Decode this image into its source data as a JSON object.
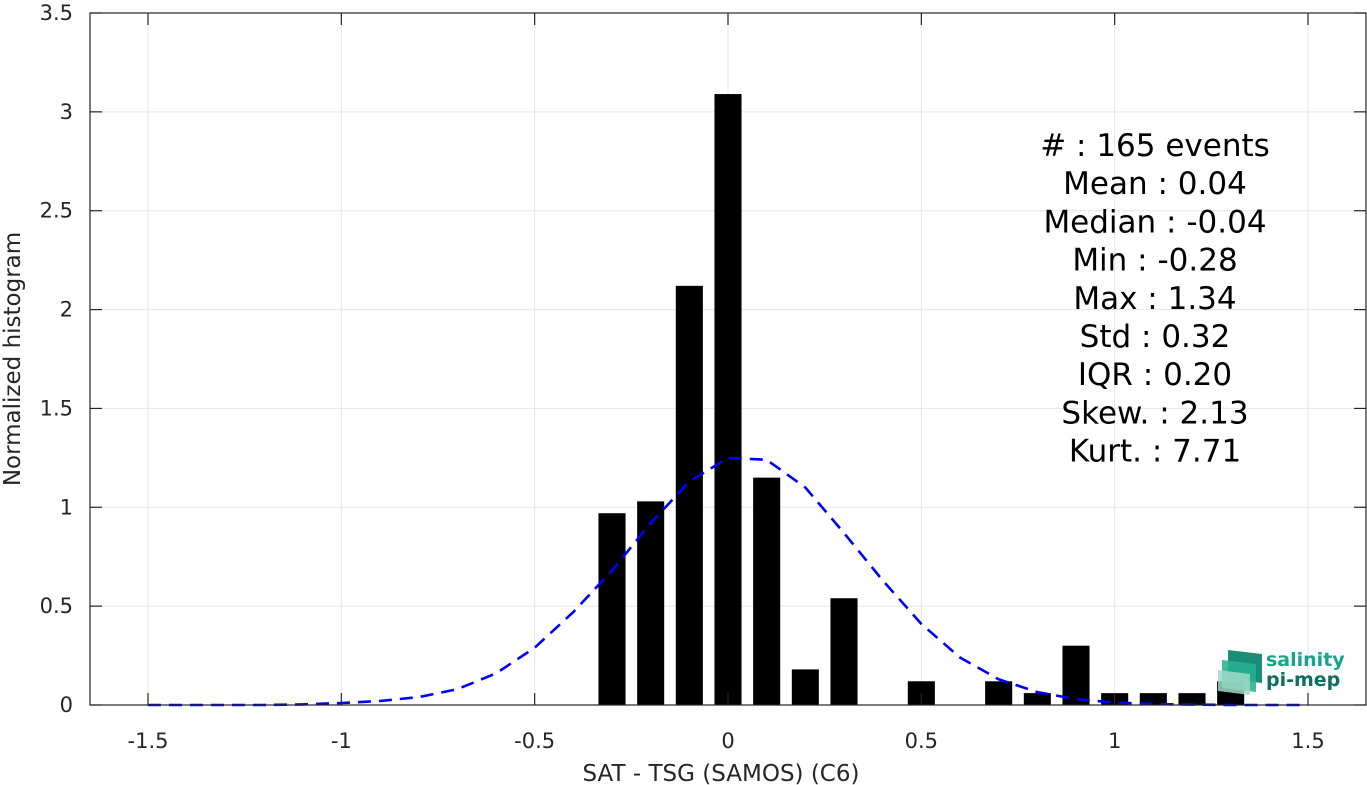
{
  "chart_data": {
    "type": "bar",
    "title": "",
    "xlabel": "SAT - TSG (SAMOS) (C6)",
    "ylabel": "Normalized histogram",
    "xlim": [
      -1.65,
      1.65
    ],
    "ylim": [
      0,
      3.5
    ],
    "grid": true,
    "xticks": [
      -1.5,
      -1,
      -0.5,
      0,
      0.5,
      1,
      1.5
    ],
    "xtick_labels": [
      "-1.5",
      "-1",
      "-0.5",
      "0",
      "0.5",
      "1",
      "1.5"
    ],
    "yticks": [
      0,
      0.5,
      1,
      1.5,
      2,
      2.5,
      3,
      3.5
    ],
    "ytick_labels": [
      "0",
      "0.5",
      "1",
      "1.5",
      "2",
      "2.5",
      "3",
      "3.5"
    ],
    "bar_width": 0.07,
    "bars": {
      "x": [
        -0.3,
        -0.2,
        -0.1,
        0.0,
        0.1,
        0.2,
        0.3,
        0.5,
        0.7,
        0.8,
        0.9,
        1.0,
        1.1,
        1.2,
        1.3
      ],
      "values": [
        0.97,
        1.03,
        2.12,
        3.09,
        1.15,
        0.18,
        0.54,
        0.12,
        0.12,
        0.06,
        0.3,
        0.06,
        0.06,
        0.06,
        0.12
      ],
      "color": "#000000"
    },
    "fit_curve": {
      "style": "dashed",
      "color": "#0000ff",
      "x": [
        -1.5,
        -1.4,
        -1.3,
        -1.2,
        -1.1,
        -1.0,
        -0.9,
        -0.8,
        -0.7,
        -0.6,
        -0.5,
        -0.4,
        -0.3,
        -0.2,
        -0.1,
        0.0,
        0.1,
        0.2,
        0.3,
        0.4,
        0.5,
        0.6,
        0.7,
        0.8,
        0.9,
        1.0,
        1.1,
        1.2,
        1.3,
        1.4,
        1.5
      ],
      "values": [
        0.0,
        0.0,
        0.0,
        0.0,
        0.003,
        0.01,
        0.02,
        0.04,
        0.08,
        0.16,
        0.29,
        0.47,
        0.68,
        0.92,
        1.13,
        1.25,
        1.24,
        1.1,
        0.87,
        0.63,
        0.41,
        0.24,
        0.13,
        0.065,
        0.03,
        0.012,
        0.005,
        0.002,
        0.0,
        0.0,
        0.0
      ]
    },
    "stats": [
      {
        "label": "#  ",
        "value": ": 165 events"
      },
      {
        "label": "Mean ",
        "value": ": 0.04"
      },
      {
        "label": "Median ",
        "value": ": -0.04"
      },
      {
        "label": "Min ",
        "value": ": -0.28"
      },
      {
        "label": "Max ",
        "value": ": 1.34"
      },
      {
        "label": "Std ",
        "value": ": 0.32"
      },
      {
        "label": "IQR ",
        "value": ": 0.20"
      },
      {
        "label": "Skew. ",
        "value": ": 2.13"
      },
      {
        "label": "Kurt. ",
        "value": ": 7.71"
      }
    ]
  },
  "logo": {
    "line1": "salinity",
    "line2": "pi-mep",
    "color1": "#16a58a",
    "color2": "#0f6e5e"
  }
}
